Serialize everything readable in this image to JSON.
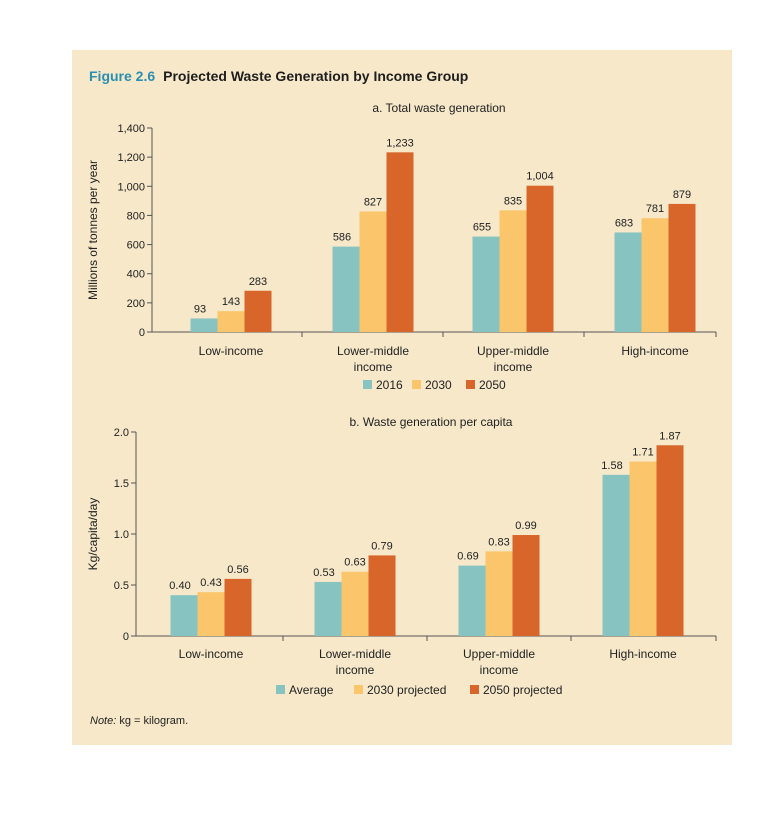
{
  "figure": {
    "number": "Figure 2.6",
    "title": "Projected Waste Generation by Income Group",
    "note_label": "Note:",
    "note_text": " kg = kilogram."
  },
  "colors": {
    "series1": "#86c3c1",
    "series2": "#fbc66b",
    "series3": "#d8662b",
    "background": "#f6e8c9"
  },
  "chart_data": [
    {
      "type": "bar",
      "title": "a. Total waste generation",
      "ylabel": "Millions of tonnes per year",
      "xlabel": "",
      "categories": [
        [
          "Low-income"
        ],
        [
          "Lower-middle",
          "income"
        ],
        [
          "Upper-middle",
          "income"
        ],
        [
          "High-income"
        ]
      ],
      "ylim": [
        0,
        1400
      ],
      "yticks": [
        "0",
        "200",
        "400",
        "600",
        "800",
        "1,000",
        "1,200",
        "1,400"
      ],
      "ytick_values": [
        0,
        200,
        400,
        600,
        800,
        1000,
        1200,
        1400
      ],
      "legend_position": "bottom",
      "series": [
        {
          "name": "2016",
          "values": [
            93,
            586,
            655,
            683
          ],
          "labels": [
            "93",
            "586",
            "655",
            "683"
          ]
        },
        {
          "name": "2030",
          "values": [
            143,
            827,
            835,
            781
          ],
          "labels": [
            "143",
            "827",
            "835",
            "781"
          ]
        },
        {
          "name": "2050",
          "values": [
            283,
            1233,
            1004,
            879
          ],
          "labels": [
            "283",
            "1,233",
            "1,004",
            "879"
          ]
        }
      ]
    },
    {
      "type": "bar",
      "title": "b. Waste generation per capita",
      "ylabel": "Kg/capita/day",
      "xlabel": "",
      "categories": [
        [
          "Low-income"
        ],
        [
          "Lower-middle",
          "income"
        ],
        [
          "Upper-middle",
          "income"
        ],
        [
          "High-income"
        ]
      ],
      "ylim": [
        0,
        2.0
      ],
      "yticks": [
        "0",
        "0.5",
        "1.0",
        "1.5",
        "2.0"
      ],
      "ytick_values": [
        0,
        0.5,
        1.0,
        1.5,
        2.0
      ],
      "legend_position": "bottom",
      "series": [
        {
          "name": "Average",
          "values": [
            0.4,
            0.53,
            0.69,
            1.58
          ],
          "labels": [
            "0.40",
            "0.53",
            "0.69",
            "1.58"
          ]
        },
        {
          "name": "2030 projected",
          "values": [
            0.43,
            0.63,
            0.83,
            1.71
          ],
          "labels": [
            "0.43",
            "0.63",
            "0.83",
            "1.71"
          ]
        },
        {
          "name": "2050 projected",
          "values": [
            0.56,
            0.79,
            0.99,
            1.87
          ],
          "labels": [
            "0.56",
            "0.79",
            "0.99",
            "1.87"
          ]
        }
      ]
    }
  ]
}
